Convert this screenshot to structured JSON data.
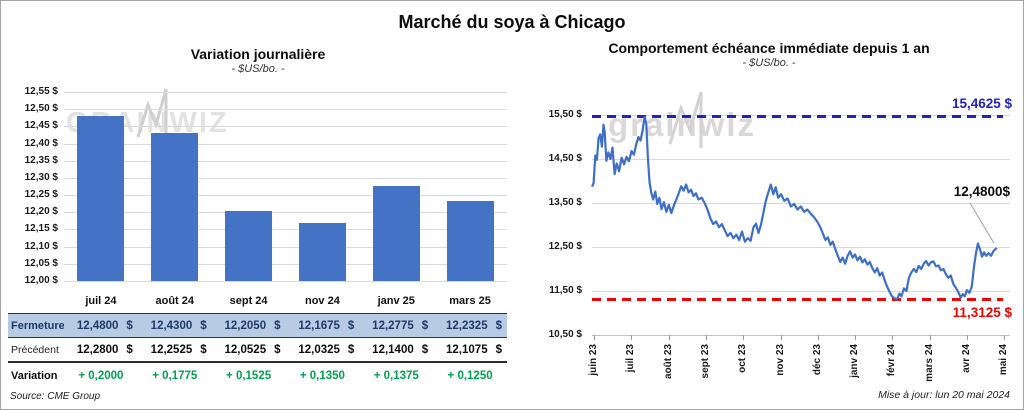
{
  "page": {
    "title": "Marché du soya à Chicago",
    "source": "Source: CME Group",
    "updated": "Mise à jour: lun 20 mai 2024",
    "watermark": "grainwiz"
  },
  "colors": {
    "bar": "#4472c4",
    "line": "#3e6fc6",
    "max_line": "#2222c4",
    "min_line": "#f40000",
    "grid": "#dadada",
    "close_row_bg": "#b7cbe5",
    "close_text": "#1f3a68",
    "variation_green": "#00a050",
    "leader": "#a0a0a0"
  },
  "chart_data": [
    {
      "type": "bar",
      "title": "Variation journalière",
      "subtitle": "- $US/bo. -",
      "categories": [
        "juil 24",
        "août 24",
        "sept 24",
        "nov 24",
        "janv 25",
        "mars 25"
      ],
      "values": [
        12.48,
        12.43,
        12.205,
        12.1675,
        12.2775,
        12.2325
      ],
      "ylim": [
        12.0,
        12.55
      ],
      "ytick_labels": [
        "12,55 $",
        "12,50 $",
        "12,45 $",
        "12,40 $",
        "12,35 $",
        "12,30 $",
        "12,25 $",
        "12,20 $",
        "12,15 $",
        "12,10 $",
        "12,05 $",
        "12,00 $"
      ],
      "grid": true
    },
    {
      "type": "line",
      "title": "Comportement échéance immédiate depuis 1 an",
      "subtitle": "- $US/bo. -",
      "x_labels": [
        "juin 23",
        "juil 23",
        "août 23",
        "sept 23",
        "oct 23",
        "nov 23",
        "déc 23",
        "janv 24",
        "févr 24",
        "mars 24",
        "avr 24",
        "mai 24"
      ],
      "ylim": [
        10.5,
        15.5
      ],
      "ytick_labels": [
        "15,50 $",
        "14,50 $",
        "13,50 $",
        "12,50 $",
        "11,50 $",
        "10,50 $"
      ],
      "max_line": {
        "value": 15.4625,
        "label": "15,4625 $"
      },
      "min_line": {
        "value": 11.3125,
        "label": "11,3125 $"
      },
      "last_point": {
        "value": 12.48,
        "label": "12,4800$"
      },
      "grid": true,
      "points": [
        [
          0.0,
          13.87
        ],
        [
          0.004,
          13.95
        ],
        [
          0.008,
          14.58
        ],
        [
          0.012,
          14.48
        ],
        [
          0.016,
          14.98
        ],
        [
          0.02,
          15.06
        ],
        [
          0.024,
          14.78
        ],
        [
          0.028,
          15.28
        ],
        [
          0.031,
          15.1
        ],
        [
          0.035,
          14.46
        ],
        [
          0.04,
          14.65
        ],
        [
          0.045,
          14.5
        ],
        [
          0.05,
          14.76
        ],
        [
          0.055,
          14.16
        ],
        [
          0.06,
          14.4
        ],
        [
          0.066,
          14.22
        ],
        [
          0.072,
          14.53
        ],
        [
          0.078,
          14.38
        ],
        [
          0.084,
          14.55
        ],
        [
          0.09,
          14.45
        ],
        [
          0.096,
          14.68
        ],
        [
          0.102,
          14.6
        ],
        [
          0.108,
          14.85
        ],
        [
          0.113,
          15.0
        ],
        [
          0.118,
          14.92
        ],
        [
          0.123,
          15.15
        ],
        [
          0.128,
          15.46
        ],
        [
          0.132,
          15.3
        ],
        [
          0.136,
          14.52
        ],
        [
          0.14,
          13.98
        ],
        [
          0.144,
          13.74
        ],
        [
          0.149,
          13.58
        ],
        [
          0.154,
          13.76
        ],
        [
          0.159,
          13.48
        ],
        [
          0.164,
          13.62
        ],
        [
          0.169,
          13.36
        ],
        [
          0.175,
          13.52
        ],
        [
          0.181,
          13.3
        ],
        [
          0.187,
          13.46
        ],
        [
          0.193,
          13.27
        ],
        [
          0.199,
          13.44
        ],
        [
          0.205,
          13.58
        ],
        [
          0.211,
          13.72
        ],
        [
          0.217,
          13.88
        ],
        [
          0.223,
          13.78
        ],
        [
          0.229,
          13.92
        ],
        [
          0.235,
          13.74
        ],
        [
          0.241,
          13.8
        ],
        [
          0.247,
          13.66
        ],
        [
          0.253,
          13.72
        ],
        [
          0.259,
          13.58
        ],
        [
          0.267,
          13.62
        ],
        [
          0.274,
          13.5
        ],
        [
          0.281,
          13.35
        ],
        [
          0.288,
          13.15
        ],
        [
          0.295,
          13.02
        ],
        [
          0.302,
          13.08
        ],
        [
          0.309,
          12.95
        ],
        [
          0.316,
          13.02
        ],
        [
          0.323,
          12.88
        ],
        [
          0.33,
          12.75
        ],
        [
          0.337,
          12.82
        ],
        [
          0.344,
          12.7
        ],
        [
          0.351,
          12.78
        ],
        [
          0.358,
          12.66
        ],
        [
          0.365,
          12.85
        ],
        [
          0.372,
          12.62
        ],
        [
          0.379,
          12.7
        ],
        [
          0.386,
          12.64
        ],
        [
          0.393,
          12.95
        ],
        [
          0.399,
          13.03
        ],
        [
          0.405,
          12.82
        ],
        [
          0.411,
          13.0
        ],
        [
          0.417,
          13.28
        ],
        [
          0.423,
          13.56
        ],
        [
          0.429,
          13.74
        ],
        [
          0.435,
          13.92
        ],
        [
          0.441,
          13.7
        ],
        [
          0.447,
          13.86
        ],
        [
          0.453,
          13.62
        ],
        [
          0.46,
          13.7
        ],
        [
          0.468,
          13.55
        ],
        [
          0.476,
          13.6
        ],
        [
          0.484,
          13.42
        ],
        [
          0.492,
          13.48
        ],
        [
          0.5,
          13.35
        ],
        [
          0.508,
          13.42
        ],
        [
          0.516,
          13.3
        ],
        [
          0.524,
          13.35
        ],
        [
          0.532,
          13.26
        ],
        [
          0.54,
          13.18
        ],
        [
          0.548,
          13.08
        ],
        [
          0.556,
          12.94
        ],
        [
          0.562,
          12.8
        ],
        [
          0.568,
          12.66
        ],
        [
          0.574,
          12.72
        ],
        [
          0.58,
          12.55
        ],
        [
          0.586,
          12.62
        ],
        [
          0.592,
          12.45
        ],
        [
          0.598,
          12.3
        ],
        [
          0.604,
          12.16
        ],
        [
          0.61,
          12.26
        ],
        [
          0.616,
          12.12
        ],
        [
          0.622,
          12.3
        ],
        [
          0.628,
          12.4
        ],
        [
          0.634,
          12.26
        ],
        [
          0.64,
          12.33
        ],
        [
          0.646,
          12.2
        ],
        [
          0.652,
          12.28
        ],
        [
          0.658,
          12.15
        ],
        [
          0.664,
          12.22
        ],
        [
          0.67,
          12.1
        ],
        [
          0.676,
          12.16
        ],
        [
          0.682,
          12.02
        ],
        [
          0.688,
          11.92
        ],
        [
          0.694,
          12.02
        ],
        [
          0.7,
          11.85
        ],
        [
          0.706,
          11.92
        ],
        [
          0.712,
          11.75
        ],
        [
          0.718,
          11.6
        ],
        [
          0.724,
          11.48
        ],
        [
          0.73,
          11.38
        ],
        [
          0.737,
          11.33
        ],
        [
          0.742,
          11.31
        ],
        [
          0.748,
          11.44
        ],
        [
          0.753,
          11.38
        ],
        [
          0.759,
          11.56
        ],
        [
          0.765,
          11.5
        ],
        [
          0.771,
          11.8
        ],
        [
          0.777,
          11.92
        ],
        [
          0.783,
          12.0
        ],
        [
          0.789,
          11.93
        ],
        [
          0.795,
          12.07
        ],
        [
          0.801,
          12.0
        ],
        [
          0.807,
          12.12
        ],
        [
          0.813,
          12.18
        ],
        [
          0.819,
          12.08
        ],
        [
          0.825,
          12.16
        ],
        [
          0.831,
          12.17
        ],
        [
          0.837,
          12.06
        ],
        [
          0.843,
          12.08
        ],
        [
          0.849,
          11.97
        ],
        [
          0.855,
          12.0
        ],
        [
          0.861,
          11.88
        ],
        [
          0.867,
          11.8
        ],
        [
          0.873,
          11.85
        ],
        [
          0.879,
          11.66
        ],
        [
          0.885,
          11.58
        ],
        [
          0.891,
          11.48
        ],
        [
          0.897,
          11.35
        ],
        [
          0.902,
          11.43
        ],
        [
          0.907,
          11.38
        ],
        [
          0.912,
          11.52
        ],
        [
          0.918,
          11.46
        ],
        [
          0.924,
          11.6
        ],
        [
          0.929,
          12.02
        ],
        [
          0.934,
          12.35
        ],
        [
          0.939,
          12.58
        ],
        [
          0.944,
          12.45
        ],
        [
          0.949,
          12.28
        ],
        [
          0.954,
          12.38
        ],
        [
          0.959,
          12.3
        ],
        [
          0.965,
          12.36
        ],
        [
          0.971,
          12.3
        ],
        [
          0.977,
          12.41
        ],
        [
          0.985,
          12.48
        ]
      ]
    }
  ],
  "table": {
    "rows": [
      {
        "label": "Fermeture",
        "values": [
          "12,4800 $",
          "12,4300 $",
          "12,2050 $",
          "12,1675 $",
          "12,2775 $",
          "12,2325 $"
        ]
      },
      {
        "label": "Précédent",
        "values": [
          "12,2800 $",
          "12,2525 $",
          "12,0525 $",
          "12,0325 $",
          "12,1400 $",
          "12,1075 $"
        ]
      },
      {
        "label": "Variation",
        "values": [
          "+ 0,2000",
          "+ 0,1775",
          "+ 0,1525",
          "+ 0,1350",
          "+ 0,1375",
          "+ 0,1250"
        ]
      }
    ]
  }
}
